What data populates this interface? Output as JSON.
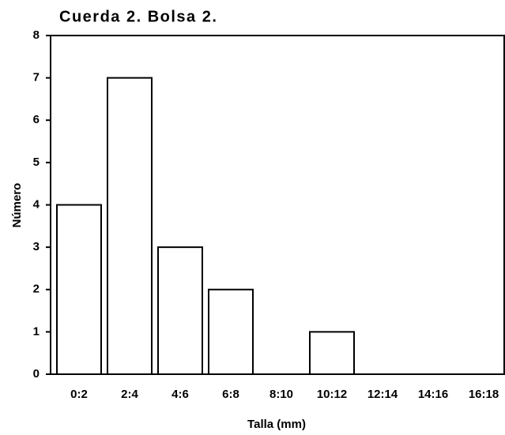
{
  "chart_data": {
    "type": "bar",
    "title": "Cuerda 2. Bolsa 2.",
    "x_label": "Talla (mm)",
    "y_label": "Número",
    "categories": [
      "0:2",
      "2:4",
      "4:6",
      "6:8",
      "8:10",
      "10:12",
      "12:14",
      "14:16",
      "16:18"
    ],
    "values": [
      4,
      7,
      3,
      2,
      0,
      1,
      0,
      0,
      0
    ],
    "color": "#ffffff",
    "ylim": [
      0,
      8
    ],
    "yticks": [
      0,
      1,
      2,
      3,
      4,
      5,
      6,
      7,
      8
    ],
    "grid": false
  }
}
